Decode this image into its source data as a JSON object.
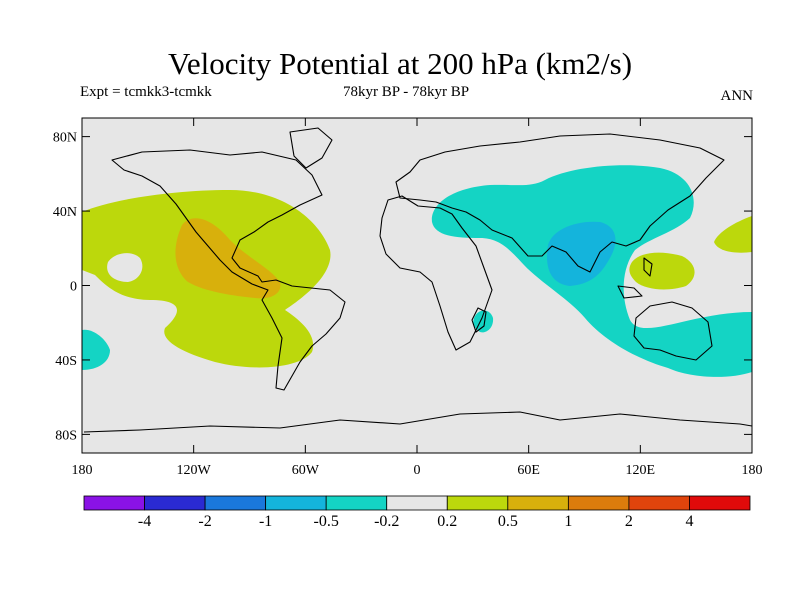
{
  "title": "Velocity Potential at 200 hPa (km2/s)",
  "experiment": "Expt = tcmkk3-tcmkk",
  "period": "78kyr BP - 78kyr BP",
  "season": "ANN",
  "map": {
    "lat_ticks": [
      "80N",
      "40N",
      "0",
      "40S",
      "80S"
    ],
    "lat_values": [
      80,
      40,
      0,
      -40,
      -80
    ],
    "lon_ticks": [
      "180",
      "120W",
      "60W",
      "0",
      "60E",
      "120E",
      "180"
    ],
    "lon_values": [
      -180,
      -120,
      -60,
      0,
      60,
      120,
      180
    ],
    "lon_range": [
      -180,
      180
    ],
    "lat_range": [
      -90,
      90
    ],
    "background_color": "#e6e6e6"
  },
  "colorbar": {
    "colors": [
      "#8a12e6",
      "#2a2ad2",
      "#1a78dc",
      "#14b4dc",
      "#14d4c4",
      "#e6e6e6",
      "#bcd80c",
      "#d8b00c",
      "#dc7c0c",
      "#e0440c",
      "#e00a0a"
    ],
    "labels": [
      "-4",
      "-2",
      "-1",
      "-0.5",
      "-0.2",
      "0.2",
      "0.5",
      "1",
      "2",
      "4"
    ]
  }
}
